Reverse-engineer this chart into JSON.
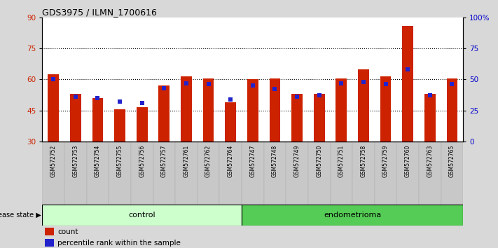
{
  "title": "GDS3975 / ILMN_1700616",
  "samples": [
    "GSM572752",
    "GSM572753",
    "GSM572754",
    "GSM572755",
    "GSM572756",
    "GSM572757",
    "GSM572761",
    "GSM572762",
    "GSM572764",
    "GSM572747",
    "GSM572748",
    "GSM572749",
    "GSM572750",
    "GSM572751",
    "GSM572758",
    "GSM572759",
    "GSM572760",
    "GSM572763",
    "GSM572765"
  ],
  "count_values": [
    62.5,
    53.0,
    51.0,
    45.5,
    46.5,
    57.0,
    61.5,
    60.5,
    49.0,
    60.0,
    60.5,
    53.0,
    53.0,
    60.5,
    65.0,
    61.5,
    86.0,
    53.0,
    60.5
  ],
  "percentile_values": [
    50.0,
    36.0,
    35.0,
    32.0,
    31.0,
    43.0,
    46.5,
    46.0,
    34.0,
    45.0,
    42.5,
    36.0,
    37.0,
    46.5,
    48.0,
    46.0,
    58.0,
    37.0,
    46.0
  ],
  "bar_color": "#cc2200",
  "dot_color": "#2222cc",
  "bar_bottom": 30,
  "ylim_left": [
    30,
    90
  ],
  "yticks_left": [
    30,
    45,
    60,
    75,
    90
  ],
  "ylim_right": [
    0,
    100
  ],
  "yticks_right": [
    0,
    25,
    50,
    75,
    100
  ],
  "yticklabels_right": [
    "0",
    "25",
    "50",
    "75",
    "100%"
  ],
  "n_control": 9,
  "n_endometrioma": 10,
  "control_color": "#ccffcc",
  "endometrioma_color": "#55cc55",
  "background_color": "#d8d8d8",
  "plot_bg_color": "#ffffff",
  "ticklabel_bg": "#d0d0d0",
  "legend_count_label": "count",
  "legend_pct_label": "percentile rank within the sample",
  "disease_state_label": "disease state",
  "control_label": "control",
  "endometrioma_label": "endometrioma",
  "bar_width": 0.5
}
